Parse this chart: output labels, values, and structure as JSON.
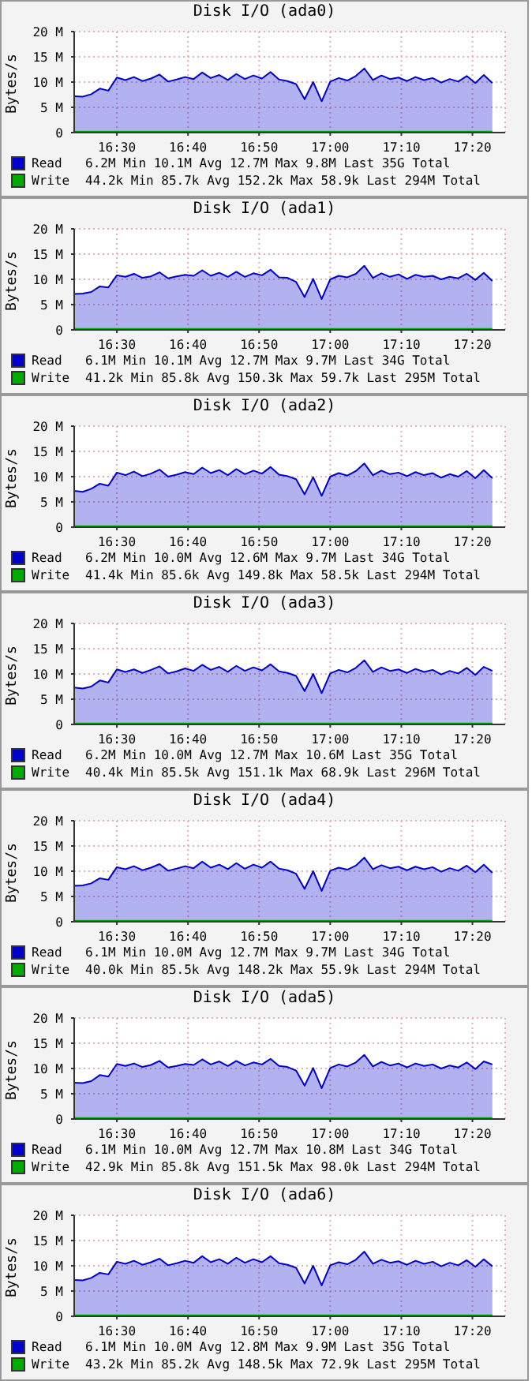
{
  "chart_data": [
    {
      "type": "area",
      "title": "Disk I/O (ada0)",
      "ylabel": "Bytes/s",
      "xlim": [
        16.4,
        17.41
      ],
      "ylim": [
        0,
        20
      ],
      "xticks": [
        {
          "value": 16.5,
          "label": "16:30"
        },
        {
          "value": 16.6667,
          "label": "16:40"
        },
        {
          "value": 16.8333,
          "label": "16:50"
        },
        {
          "value": 17,
          "label": "17:00"
        },
        {
          "value": 17.1667,
          "label": "17:10"
        },
        {
          "value": 17.3333,
          "label": "17:20"
        }
      ],
      "yticks": [
        {
          "value": 0,
          "label": "0"
        },
        {
          "value": 5,
          "label": "5 M"
        },
        {
          "value": 10,
          "label": "10 M"
        },
        {
          "value": 15,
          "label": "15 M"
        },
        {
          "value": 20,
          "label": "20 M"
        }
      ],
      "grid": true,
      "legend": "bottom",
      "annotations": [
        "6.2M Min 10.1M Avg 12.7M Max 9.8M Last 35G Total",
        "44.2k Min 85.7k Avg 152.2k Max 58.9k Last 294M Total"
      ],
      "x": [
        16.4,
        16.42,
        16.44,
        16.46,
        16.48,
        16.5,
        16.52,
        16.54,
        16.56,
        16.58,
        16.6,
        16.62,
        16.64,
        16.66,
        16.68,
        16.7,
        16.72,
        16.74,
        16.76,
        16.78,
        16.8,
        16.82,
        16.84,
        16.86,
        16.88,
        16.9,
        16.92,
        16.94,
        16.96,
        16.98,
        17,
        17.02,
        17.04,
        17.06,
        17.08,
        17.1,
        17.12,
        17.14,
        17.16,
        17.18,
        17.2,
        17.22,
        17.24,
        17.26,
        17.28,
        17.3,
        17.32,
        17.34,
        17.36,
        17.38
      ],
      "series": [
        {
          "name": "Read",
          "type": "area",
          "color": "#0000cc",
          "values": [
            7.2,
            7.1,
            7.6,
            8.7,
            8.3,
            10.9,
            10.4,
            11.0,
            10.2,
            10.7,
            11.5,
            10.1,
            10.5,
            11.0,
            10.6,
            11.9,
            10.8,
            11.4,
            10.4,
            11.6,
            10.6,
            11.3,
            10.7,
            12.0,
            10.5,
            10.2,
            9.6,
            6.6,
            10.0,
            6.2,
            10.1,
            10.8,
            10.3,
            11.2,
            12.7,
            10.4,
            11.3,
            10.6,
            10.9,
            10.2,
            11.0,
            10.4,
            10.8,
            9.9,
            10.6,
            10.1,
            11.2,
            9.8,
            11.4,
            9.8
          ]
        },
        {
          "name": "Write",
          "type": "line",
          "color": "#00aa00",
          "values": [
            0.1,
            0.1,
            0.1,
            0.1,
            0.1,
            0.1,
            0.1,
            0.1,
            0.1,
            0.1,
            0.1,
            0.1,
            0.1,
            0.1,
            0.1,
            0.1,
            0.1,
            0.1,
            0.1,
            0.1,
            0.1,
            0.1,
            0.1,
            0.1,
            0.1,
            0.1,
            0.1,
            0.1,
            0.1,
            0.1,
            0.1,
            0.1,
            0.1,
            0.1,
            0.1,
            0.1,
            0.1,
            0.1,
            0.1,
            0.1,
            0.1,
            0.1,
            0.1,
            0.1,
            0.1,
            0.1,
            0.1,
            0.1,
            0.1,
            0.1
          ]
        }
      ]
    },
    {
      "type": "area",
      "title": "Disk I/O (ada1)",
      "ylabel": "Bytes/s",
      "xlim": [
        16.4,
        17.41
      ],
      "ylim": [
        0,
        20
      ],
      "xticks": [
        {
          "value": 16.5,
          "label": "16:30"
        },
        {
          "value": 16.6667,
          "label": "16:40"
        },
        {
          "value": 16.8333,
          "label": "16:50"
        },
        {
          "value": 17,
          "label": "17:00"
        },
        {
          "value": 17.1667,
          "label": "17:10"
        },
        {
          "value": 17.3333,
          "label": "17:20"
        }
      ],
      "yticks": [
        {
          "value": 0,
          "label": "0"
        },
        {
          "value": 5,
          "label": "5 M"
        },
        {
          "value": 10,
          "label": "10 M"
        },
        {
          "value": 15,
          "label": "15 M"
        },
        {
          "value": 20,
          "label": "20 M"
        }
      ],
      "grid": true,
      "legend": "bottom",
      "annotations": [
        "6.1M Min 10.1M Avg 12.7M Max 9.7M Last 34G Total",
        "41.2k Min 85.8k Avg 150.3k Max 59.7k Last 295M Total"
      ],
      "x": [
        16.4,
        16.42,
        16.44,
        16.46,
        16.48,
        16.5,
        16.52,
        16.54,
        16.56,
        16.58,
        16.6,
        16.62,
        16.64,
        16.66,
        16.68,
        16.7,
        16.72,
        16.74,
        16.76,
        16.78,
        16.8,
        16.82,
        16.84,
        16.86,
        16.88,
        16.9,
        16.92,
        16.94,
        16.96,
        16.98,
        17,
        17.02,
        17.04,
        17.06,
        17.08,
        17.1,
        17.12,
        17.14,
        17.16,
        17.18,
        17.2,
        17.22,
        17.24,
        17.26,
        17.28,
        17.3,
        17.32,
        17.34,
        17.36,
        17.38
      ],
      "series": [
        {
          "name": "Read",
          "type": "area",
          "color": "#0000cc",
          "values": [
            7.1,
            7.2,
            7.5,
            8.6,
            8.4,
            10.8,
            10.5,
            11.1,
            10.3,
            10.6,
            11.4,
            10.2,
            10.6,
            10.9,
            10.7,
            11.8,
            10.7,
            11.3,
            10.5,
            11.5,
            10.5,
            11.2,
            10.8,
            11.9,
            10.4,
            10.3,
            9.5,
            6.5,
            10.1,
            6.1,
            10.0,
            10.7,
            10.4,
            11.1,
            12.7,
            10.3,
            11.2,
            10.5,
            11.0,
            10.1,
            10.9,
            10.5,
            10.7,
            10.0,
            10.5,
            10.2,
            11.1,
            9.9,
            11.3,
            9.7
          ]
        },
        {
          "name": "Write",
          "type": "line",
          "color": "#00aa00",
          "values": [
            0.1,
            0.1,
            0.1,
            0.1,
            0.1,
            0.1,
            0.1,
            0.1,
            0.1,
            0.1,
            0.1,
            0.1,
            0.1,
            0.1,
            0.1,
            0.1,
            0.1,
            0.1,
            0.1,
            0.1,
            0.1,
            0.1,
            0.1,
            0.1,
            0.1,
            0.1,
            0.1,
            0.1,
            0.1,
            0.1,
            0.1,
            0.1,
            0.1,
            0.1,
            0.1,
            0.1,
            0.1,
            0.1,
            0.1,
            0.1,
            0.1,
            0.1,
            0.1,
            0.1,
            0.1,
            0.1,
            0.1,
            0.1,
            0.1,
            0.1
          ]
        }
      ]
    },
    {
      "type": "area",
      "title": "Disk I/O (ada2)",
      "ylabel": "Bytes/s",
      "xlim": [
        16.4,
        17.41
      ],
      "ylim": [
        0,
        20
      ],
      "xticks": [
        {
          "value": 16.5,
          "label": "16:30"
        },
        {
          "value": 16.6667,
          "label": "16:40"
        },
        {
          "value": 16.8333,
          "label": "16:50"
        },
        {
          "value": 17,
          "label": "17:00"
        },
        {
          "value": 17.1667,
          "label": "17:10"
        },
        {
          "value": 17.3333,
          "label": "17:20"
        }
      ],
      "yticks": [
        {
          "value": 0,
          "label": "0"
        },
        {
          "value": 5,
          "label": "5 M"
        },
        {
          "value": 10,
          "label": "10 M"
        },
        {
          "value": 15,
          "label": "15 M"
        },
        {
          "value": 20,
          "label": "20 M"
        }
      ],
      "grid": true,
      "legend": "bottom",
      "annotations": [
        "6.2M Min 10.0M Avg 12.6M Max 9.7M Last 34G Total",
        "41.4k Min 85.6k Avg 149.8k Max 58.5k Last 294M Total"
      ],
      "x": [
        16.4,
        16.42,
        16.44,
        16.46,
        16.48,
        16.5,
        16.52,
        16.54,
        16.56,
        16.58,
        16.6,
        16.62,
        16.64,
        16.66,
        16.68,
        16.7,
        16.72,
        16.74,
        16.76,
        16.78,
        16.8,
        16.82,
        16.84,
        16.86,
        16.88,
        16.9,
        16.92,
        16.94,
        16.96,
        16.98,
        17,
        17.02,
        17.04,
        17.06,
        17.08,
        17.1,
        17.12,
        17.14,
        17.16,
        17.18,
        17.2,
        17.22,
        17.24,
        17.26,
        17.28,
        17.3,
        17.32,
        17.34,
        17.36,
        17.38
      ],
      "series": [
        {
          "name": "Read",
          "type": "area",
          "color": "#0000cc",
          "values": [
            7.2,
            7.0,
            7.6,
            8.6,
            8.2,
            10.8,
            10.3,
            11.0,
            10.1,
            10.6,
            11.4,
            10.0,
            10.4,
            10.9,
            10.5,
            11.8,
            10.7,
            11.3,
            10.3,
            11.5,
            10.5,
            11.2,
            10.6,
            11.9,
            10.4,
            10.1,
            9.5,
            6.5,
            9.9,
            6.2,
            10.0,
            10.7,
            10.2,
            11.1,
            12.6,
            10.3,
            11.2,
            10.5,
            10.8,
            10.1,
            10.9,
            10.3,
            10.7,
            9.8,
            10.5,
            10.0,
            11.1,
            9.7,
            11.3,
            9.7
          ]
        },
        {
          "name": "Write",
          "type": "line",
          "color": "#00aa00",
          "values": [
            0.1,
            0.1,
            0.1,
            0.1,
            0.1,
            0.1,
            0.1,
            0.1,
            0.1,
            0.1,
            0.1,
            0.1,
            0.1,
            0.1,
            0.1,
            0.1,
            0.1,
            0.1,
            0.1,
            0.1,
            0.1,
            0.1,
            0.1,
            0.1,
            0.1,
            0.1,
            0.1,
            0.1,
            0.1,
            0.1,
            0.1,
            0.1,
            0.1,
            0.1,
            0.1,
            0.1,
            0.1,
            0.1,
            0.1,
            0.1,
            0.1,
            0.1,
            0.1,
            0.1,
            0.1,
            0.1,
            0.1,
            0.1,
            0.1,
            0.1
          ]
        }
      ]
    },
    {
      "type": "area",
      "title": "Disk I/O (ada3)",
      "ylabel": "Bytes/s",
      "xlim": [
        16.4,
        17.41
      ],
      "ylim": [
        0,
        20
      ],
      "xticks": [
        {
          "value": 16.5,
          "label": "16:30"
        },
        {
          "value": 16.6667,
          "label": "16:40"
        },
        {
          "value": 16.8333,
          "label": "16:50"
        },
        {
          "value": 17,
          "label": "17:00"
        },
        {
          "value": 17.1667,
          "label": "17:10"
        },
        {
          "value": 17.3333,
          "label": "17:20"
        }
      ],
      "yticks": [
        {
          "value": 0,
          "label": "0"
        },
        {
          "value": 5,
          "label": "5 M"
        },
        {
          "value": 10,
          "label": "10 M"
        },
        {
          "value": 15,
          "label": "15 M"
        },
        {
          "value": 20,
          "label": "20 M"
        }
      ],
      "grid": true,
      "legend": "bottom",
      "annotations": [
        "6.2M Min 10.0M Avg 12.7M Max 10.6M Last 35G Total",
        "40.4k Min 85.5k Avg 151.1k Max 68.9k Last 296M Total"
      ],
      "x": [
        16.4,
        16.42,
        16.44,
        16.46,
        16.48,
        16.5,
        16.52,
        16.54,
        16.56,
        16.58,
        16.6,
        16.62,
        16.64,
        16.66,
        16.68,
        16.7,
        16.72,
        16.74,
        16.76,
        16.78,
        16.8,
        16.82,
        16.84,
        16.86,
        16.88,
        16.9,
        16.92,
        16.94,
        16.96,
        16.98,
        17,
        17.02,
        17.04,
        17.06,
        17.08,
        17.1,
        17.12,
        17.14,
        17.16,
        17.18,
        17.2,
        17.22,
        17.24,
        17.26,
        17.28,
        17.3,
        17.32,
        17.34,
        17.36,
        17.38
      ],
      "series": [
        {
          "name": "Read",
          "type": "area",
          "color": "#0000cc",
          "values": [
            7.3,
            7.1,
            7.5,
            8.7,
            8.3,
            10.9,
            10.4,
            10.9,
            10.2,
            10.8,
            11.5,
            10.1,
            10.5,
            11.1,
            10.6,
            11.8,
            10.8,
            11.4,
            10.4,
            11.6,
            10.6,
            11.3,
            10.7,
            11.9,
            10.5,
            10.2,
            9.6,
            6.6,
            10.0,
            6.2,
            10.1,
            10.8,
            10.3,
            11.2,
            12.7,
            10.4,
            11.3,
            10.6,
            10.9,
            10.2,
            11.0,
            10.4,
            10.8,
            9.9,
            10.6,
            10.1,
            11.2,
            9.8,
            11.4,
            10.6
          ]
        },
        {
          "name": "Write",
          "type": "line",
          "color": "#00aa00",
          "values": [
            0.1,
            0.1,
            0.1,
            0.1,
            0.1,
            0.1,
            0.1,
            0.1,
            0.1,
            0.1,
            0.1,
            0.1,
            0.1,
            0.1,
            0.1,
            0.1,
            0.1,
            0.1,
            0.1,
            0.1,
            0.1,
            0.1,
            0.1,
            0.1,
            0.1,
            0.1,
            0.1,
            0.1,
            0.1,
            0.1,
            0.1,
            0.1,
            0.1,
            0.1,
            0.1,
            0.1,
            0.1,
            0.1,
            0.1,
            0.1,
            0.1,
            0.1,
            0.1,
            0.1,
            0.1,
            0.1,
            0.1,
            0.1,
            0.1,
            0.1
          ]
        }
      ]
    },
    {
      "type": "area",
      "title": "Disk I/O (ada4)",
      "ylabel": "Bytes/s",
      "xlim": [
        16.4,
        17.41
      ],
      "ylim": [
        0,
        20
      ],
      "xticks": [
        {
          "value": 16.5,
          "label": "16:30"
        },
        {
          "value": 16.6667,
          "label": "16:40"
        },
        {
          "value": 16.8333,
          "label": "16:50"
        },
        {
          "value": 17,
          "label": "17:00"
        },
        {
          "value": 17.1667,
          "label": "17:10"
        },
        {
          "value": 17.3333,
          "label": "17:20"
        }
      ],
      "yticks": [
        {
          "value": 0,
          "label": "0"
        },
        {
          "value": 5,
          "label": "5 M"
        },
        {
          "value": 10,
          "label": "10 M"
        },
        {
          "value": 15,
          "label": "15 M"
        },
        {
          "value": 20,
          "label": "20 M"
        }
      ],
      "grid": true,
      "legend": "bottom",
      "annotations": [
        "6.1M Min 10.0M Avg 12.7M Max 9.7M Last 34G Total",
        "40.0k Min 85.5k Avg 148.2k Max 55.9k Last 294M Total"
      ],
      "x": [
        16.4,
        16.42,
        16.44,
        16.46,
        16.48,
        16.5,
        16.52,
        16.54,
        16.56,
        16.58,
        16.6,
        16.62,
        16.64,
        16.66,
        16.68,
        16.7,
        16.72,
        16.74,
        16.76,
        16.78,
        16.8,
        16.82,
        16.84,
        16.86,
        16.88,
        16.9,
        16.92,
        16.94,
        16.96,
        16.98,
        17,
        17.02,
        17.04,
        17.06,
        17.08,
        17.1,
        17.12,
        17.14,
        17.16,
        17.18,
        17.2,
        17.22,
        17.24,
        17.26,
        17.28,
        17.3,
        17.32,
        17.34,
        17.36,
        17.38
      ],
      "series": [
        {
          "name": "Read",
          "type": "area",
          "color": "#0000cc",
          "values": [
            7.1,
            7.2,
            7.6,
            8.6,
            8.3,
            10.8,
            10.4,
            11.0,
            10.2,
            10.7,
            11.4,
            10.1,
            10.5,
            11.0,
            10.6,
            11.9,
            10.7,
            11.3,
            10.4,
            11.6,
            10.5,
            11.3,
            10.7,
            11.9,
            10.5,
            10.2,
            9.5,
            6.5,
            10.0,
            6.1,
            10.1,
            10.7,
            10.3,
            11.1,
            12.7,
            10.4,
            11.2,
            10.6,
            10.9,
            10.2,
            10.9,
            10.4,
            10.8,
            9.9,
            10.6,
            10.1,
            11.1,
            9.8,
            11.3,
            9.7
          ]
        },
        {
          "name": "Write",
          "type": "line",
          "color": "#00aa00",
          "values": [
            0.1,
            0.1,
            0.1,
            0.1,
            0.1,
            0.1,
            0.1,
            0.1,
            0.1,
            0.1,
            0.1,
            0.1,
            0.1,
            0.1,
            0.1,
            0.1,
            0.1,
            0.1,
            0.1,
            0.1,
            0.1,
            0.1,
            0.1,
            0.1,
            0.1,
            0.1,
            0.1,
            0.1,
            0.1,
            0.1,
            0.1,
            0.1,
            0.1,
            0.1,
            0.1,
            0.1,
            0.1,
            0.1,
            0.1,
            0.1,
            0.1,
            0.1,
            0.1,
            0.1,
            0.1,
            0.1,
            0.1,
            0.1,
            0.1,
            0.1
          ]
        }
      ]
    },
    {
      "type": "area",
      "title": "Disk I/O (ada5)",
      "ylabel": "Bytes/s",
      "xlim": [
        16.4,
        17.41
      ],
      "ylim": [
        0,
        20
      ],
      "xticks": [
        {
          "value": 16.5,
          "label": "16:30"
        },
        {
          "value": 16.6667,
          "label": "16:40"
        },
        {
          "value": 16.8333,
          "label": "16:50"
        },
        {
          "value": 17,
          "label": "17:00"
        },
        {
          "value": 17.1667,
          "label": "17:10"
        },
        {
          "value": 17.3333,
          "label": "17:20"
        }
      ],
      "yticks": [
        {
          "value": 0,
          "label": "0"
        },
        {
          "value": 5,
          "label": "5 M"
        },
        {
          "value": 10,
          "label": "10 M"
        },
        {
          "value": 15,
          "label": "15 M"
        },
        {
          "value": 20,
          "label": "20 M"
        }
      ],
      "grid": true,
      "legend": "bottom",
      "annotations": [
        "6.1M Min 10.0M Avg 12.7M Max 10.8M Last 34G Total",
        "42.9k Min 85.8k Avg 151.5k Max 98.0k Last 294M Total"
      ],
      "x": [
        16.4,
        16.42,
        16.44,
        16.46,
        16.48,
        16.5,
        16.52,
        16.54,
        16.56,
        16.58,
        16.6,
        16.62,
        16.64,
        16.66,
        16.68,
        16.7,
        16.72,
        16.74,
        16.76,
        16.78,
        16.8,
        16.82,
        16.84,
        16.86,
        16.88,
        16.9,
        16.92,
        16.94,
        16.96,
        16.98,
        17,
        17.02,
        17.04,
        17.06,
        17.08,
        17.1,
        17.12,
        17.14,
        17.16,
        17.18,
        17.2,
        17.22,
        17.24,
        17.26,
        17.28,
        17.3,
        17.32,
        17.34,
        17.36,
        17.38
      ],
      "series": [
        {
          "name": "Read",
          "type": "area",
          "color": "#0000cc",
          "values": [
            7.2,
            7.1,
            7.5,
            8.7,
            8.4,
            10.9,
            10.5,
            11.0,
            10.3,
            10.7,
            11.5,
            10.2,
            10.5,
            10.9,
            10.7,
            11.8,
            10.8,
            11.4,
            10.5,
            11.5,
            10.6,
            11.2,
            10.8,
            11.9,
            10.5,
            10.3,
            9.6,
            6.6,
            10.1,
            6.1,
            10.1,
            10.8,
            10.4,
            11.2,
            12.7,
            10.4,
            11.3,
            10.6,
            11.0,
            10.2,
            11.0,
            10.5,
            10.8,
            10.0,
            10.6,
            10.2,
            11.2,
            9.9,
            11.4,
            10.8
          ]
        },
        {
          "name": "Write",
          "type": "line",
          "color": "#00aa00",
          "values": [
            0.1,
            0.1,
            0.1,
            0.1,
            0.1,
            0.1,
            0.1,
            0.1,
            0.1,
            0.1,
            0.1,
            0.1,
            0.1,
            0.1,
            0.1,
            0.1,
            0.1,
            0.1,
            0.1,
            0.1,
            0.1,
            0.1,
            0.1,
            0.1,
            0.1,
            0.1,
            0.1,
            0.1,
            0.1,
            0.1,
            0.1,
            0.1,
            0.1,
            0.1,
            0.1,
            0.1,
            0.1,
            0.1,
            0.1,
            0.1,
            0.1,
            0.1,
            0.1,
            0.1,
            0.1,
            0.1,
            0.1,
            0.1,
            0.1,
            0.1
          ]
        }
      ]
    },
    {
      "type": "area",
      "title": "Disk I/O (ada6)",
      "ylabel": "Bytes/s",
      "xlim": [
        16.4,
        17.41
      ],
      "ylim": [
        0,
        20
      ],
      "xticks": [
        {
          "value": 16.5,
          "label": "16:30"
        },
        {
          "value": 16.6667,
          "label": "16:40"
        },
        {
          "value": 16.8333,
          "label": "16:50"
        },
        {
          "value": 17,
          "label": "17:00"
        },
        {
          "value": 17.1667,
          "label": "17:10"
        },
        {
          "value": 17.3333,
          "label": "17:20"
        }
      ],
      "yticks": [
        {
          "value": 0,
          "label": "0"
        },
        {
          "value": 5,
          "label": "5 M"
        },
        {
          "value": 10,
          "label": "10 M"
        },
        {
          "value": 15,
          "label": "15 M"
        },
        {
          "value": 20,
          "label": "20 M"
        }
      ],
      "grid": true,
      "legend": "bottom",
      "annotations": [
        "6.1M Min 10.0M Avg 12.8M Max 9.9M Last 35G Total",
        "43.2k Min 85.2k Avg 148.5k Max 72.9k Last 295M Total"
      ],
      "x": [
        16.4,
        16.42,
        16.44,
        16.46,
        16.48,
        16.5,
        16.52,
        16.54,
        16.56,
        16.58,
        16.6,
        16.62,
        16.64,
        16.66,
        16.68,
        16.7,
        16.72,
        16.74,
        16.76,
        16.78,
        16.8,
        16.82,
        16.84,
        16.86,
        16.88,
        16.9,
        16.92,
        16.94,
        16.96,
        16.98,
        17,
        17.02,
        17.04,
        17.06,
        17.08,
        17.1,
        17.12,
        17.14,
        17.16,
        17.18,
        17.2,
        17.22,
        17.24,
        17.26,
        17.28,
        17.3,
        17.32,
        17.34,
        17.36,
        17.38
      ],
      "series": [
        {
          "name": "Read",
          "type": "area",
          "color": "#0000cc",
          "values": [
            7.2,
            7.1,
            7.6,
            8.6,
            8.3,
            10.8,
            10.4,
            11.0,
            10.2,
            10.7,
            11.4,
            10.1,
            10.5,
            11.0,
            10.6,
            11.9,
            10.7,
            11.3,
            10.4,
            11.6,
            10.6,
            11.3,
            10.7,
            11.9,
            10.5,
            10.2,
            9.6,
            6.5,
            10.0,
            6.1,
            10.1,
            10.7,
            10.3,
            11.2,
            12.8,
            10.4,
            11.2,
            10.6,
            10.9,
            10.2,
            11.0,
            10.4,
            10.8,
            9.9,
            10.6,
            10.1,
            11.1,
            9.8,
            11.3,
            9.9
          ]
        },
        {
          "name": "Write",
          "type": "line",
          "color": "#00aa00",
          "values": [
            0.1,
            0.1,
            0.1,
            0.1,
            0.1,
            0.1,
            0.1,
            0.1,
            0.1,
            0.1,
            0.1,
            0.1,
            0.1,
            0.1,
            0.1,
            0.1,
            0.1,
            0.1,
            0.1,
            0.1,
            0.1,
            0.1,
            0.1,
            0.1,
            0.1,
            0.1,
            0.1,
            0.1,
            0.1,
            0.1,
            0.1,
            0.1,
            0.1,
            0.1,
            0.1,
            0.1,
            0.1,
            0.1,
            0.1,
            0.1,
            0.1,
            0.1,
            0.1,
            0.1,
            0.1,
            0.1,
            0.1,
            0.1,
            0.1,
            0.1
          ]
        }
      ]
    }
  ]
}
